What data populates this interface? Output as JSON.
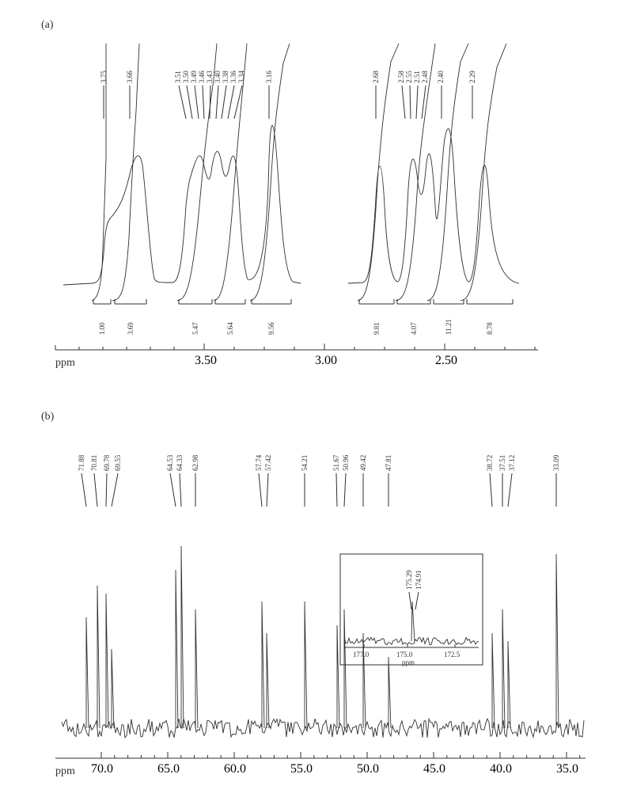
{
  "colors": {
    "line": "#303030",
    "bg": "#ffffff"
  },
  "panel_a": {
    "tag": "(a)",
    "axis": {
      "ticks": [
        "3.50",
        "3.00",
        "2.50"
      ],
      "label": "ppm"
    },
    "top_labels": [
      "3.75",
      "3.66",
      "3.51",
      "3.50",
      "3.49",
      "3.46",
      "3.43",
      "3.40",
      "3.38",
      "3.36",
      "3.34",
      "3.16",
      "2.68",
      "2.58",
      "2.55",
      "2.51",
      "2.48",
      "2.40",
      "2.29"
    ],
    "integrals": [
      "1.00",
      "3.69",
      "5.47",
      "5.64",
      "9.56",
      "9.81",
      "4.07",
      "11.21",
      "8.78"
    ]
  },
  "panel_b": {
    "tag": "(b)",
    "axis": {
      "ticks": [
        "70.0",
        "65.0",
        "60.0",
        "55.0",
        "50.0",
        "45.0",
        "40.0",
        "35.0"
      ],
      "label": "ppm"
    },
    "top_labels": [
      "71.88",
      "70.81",
      "69.78",
      "69.55",
      "64.53",
      "64.33",
      "62.98",
      "57.74",
      "57.42",
      "54.21",
      "51.67",
      "50.96",
      "49.42",
      "47.81",
      "38.72",
      "37.51",
      "37.12",
      "33.09"
    ],
    "inset": {
      "axis_ticks": [
        "177.0",
        "175.0",
        "172.5"
      ],
      "label": "ppm",
      "labels": [
        "175.29",
        "174.91"
      ]
    }
  }
}
